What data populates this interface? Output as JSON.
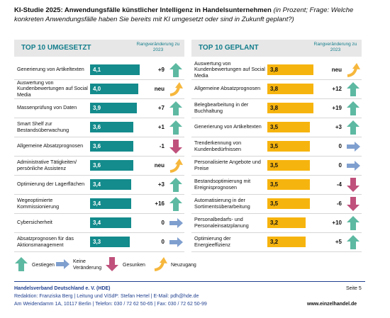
{
  "header": {
    "title": "KI-Studie 2025: Anwendungsfälle künstlicher Intelligenz in Handelsunternehmen",
    "subtitle": "(in Prozent; Frage: Welche konkreten Anwendungsfälle haben Sie bereits mit KI umgesetzt oder sind in Zukunft geplant?)"
  },
  "panels": [
    {
      "title": "TOP 10 UMGESETZT",
      "change_header": "Rangveränderung zu 2023",
      "bar_color": "#148b8c",
      "rows": [
        {
          "label": "Generierung von Artikeltexten",
          "value": 4.1,
          "value_label": "4,1",
          "change": "+9",
          "trend": "up"
        },
        {
          "label": "Auswertung von Kundenbewertungen auf Social Media",
          "value": 4.0,
          "value_label": "4,0",
          "change": "neu",
          "trend": "new"
        },
        {
          "label": "Massenprüfung von Daten",
          "value": 3.9,
          "value_label": "3,9",
          "change": "+7",
          "trend": "up"
        },
        {
          "label": "Smart Shelf zur Bestandsüberwachung",
          "value": 3.6,
          "value_label": "3,6",
          "change": "+1",
          "trend": "up"
        },
        {
          "label": "Allgemeine Absatzprognosen",
          "value": 3.6,
          "value_label": "3,6",
          "change": "-1",
          "trend": "down"
        },
        {
          "label": "Administrative Tätigkeiten/ persönliche Assistenz",
          "value": 3.6,
          "value_label": "3,6",
          "change": "neu",
          "trend": "new"
        },
        {
          "label": "Optimierung der Lagerflächen",
          "value": 3.4,
          "value_label": "3,4",
          "change": "+3",
          "trend": "up"
        },
        {
          "label": "Wegeoptimierte Kommissionierung",
          "value": 3.4,
          "value_label": "3,4",
          "change": "+16",
          "trend": "up"
        },
        {
          "label": "Cybersicherheit",
          "value": 3.4,
          "value_label": "3,4",
          "change": "0",
          "trend": "same"
        },
        {
          "label": "Absatzprognosen für das Aktionsmanagement",
          "value": 3.3,
          "value_label": "3,3",
          "change": "0",
          "trend": "same"
        }
      ]
    },
    {
      "title": "TOP 10 GEPLANT",
      "change_header": "Rangveränderung zu 2023",
      "bar_color": "#f6b40e",
      "rows": [
        {
          "label": "Auswertung von Kundenbewertungen auf Social Media",
          "value": 3.8,
          "value_label": "3,8",
          "change": "neu",
          "trend": "new"
        },
        {
          "label": "Allgemeine Absatzprognosen",
          "value": 3.8,
          "value_label": "3,8",
          "change": "+12",
          "trend": "up"
        },
        {
          "label": "Belegbearbeitung in der Buchhaltung",
          "value": 3.8,
          "value_label": "3,8",
          "change": "+19",
          "trend": "up"
        },
        {
          "label": "Generierung von Artikeltexten",
          "value": 3.5,
          "value_label": "3,5",
          "change": "+3",
          "trend": "up"
        },
        {
          "label": "Trenderkennung von Kundenbedürfnissen",
          "value": 3.5,
          "value_label": "3,5",
          "change": "0",
          "trend": "same"
        },
        {
          "label": "Personalisierte Angebote und Preise",
          "value": 3.5,
          "value_label": "3,5",
          "change": "0",
          "trend": "same"
        },
        {
          "label": "Bestandsoptimierung mit Ereignisprognosen",
          "value": 3.5,
          "value_label": "3,5",
          "change": "-4",
          "trend": "down"
        },
        {
          "label": "Automatisierung in der Sortimentsüberarbeitung",
          "value": 3.5,
          "value_label": "3,5",
          "change": "-6",
          "trend": "down"
        },
        {
          "label": "Personalbedarfs- und Personaleinsatzplanung",
          "value": 3.2,
          "value_label": "3,2",
          "change": "+10",
          "trend": "up"
        },
        {
          "label": "Optimierung der Energieeffizienz",
          "value": 3.2,
          "value_label": "3,2",
          "change": "+5",
          "trend": "up"
        }
      ]
    }
  ],
  "legend": [
    {
      "label": "Gestiegen",
      "trend": "up"
    },
    {
      "label": "Keine Veränderung",
      "trend": "same"
    },
    {
      "label": "Gesunken",
      "trend": "down"
    },
    {
      "label": "Neuzugang",
      "trend": "new"
    }
  ],
  "footer": {
    "organization": "Handelsverband Deutschland e. V.  (HDE)",
    "page": "Seite 5",
    "editorial": "Redaktion: Franziska Berg | Leitung und ViSdP: Stefan Hertel | E-Mail: pdh@hde.de",
    "address": "Am Weidendamm 1A, 10117 Berlin | Telefon: 030 / 72 62 50-65 | Fax:  030 / 72 62 50-99",
    "website": "www.einzelhandel.de"
  }
}
